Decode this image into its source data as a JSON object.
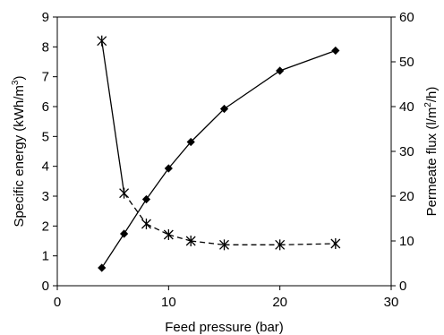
{
  "chart_data": {
    "type": "line",
    "x_axis": {
      "label": "Feed pressure (bar)",
      "range": [
        0,
        30
      ],
      "ticks": [
        0,
        10,
        20,
        30
      ]
    },
    "y_axis_left": {
      "label_parts": [
        "Specific energy (kWh/m",
        "3",
        ")"
      ],
      "range": [
        0,
        9
      ],
      "ticks": [
        0,
        1,
        2,
        3,
        4,
        5,
        6,
        7,
        8,
        9
      ]
    },
    "y_axis_right": {
      "label_parts": [
        "Permeate flux (l/m",
        "2",
        "/h)"
      ],
      "range": [
        0,
        60
      ],
      "ticks": [
        0,
        10,
        20,
        30,
        40,
        50,
        60
      ]
    },
    "grid": false,
    "legend": "none",
    "series": [
      {
        "axis": "right",
        "marker": "diamond",
        "line_style": "solid",
        "color": "#000000",
        "x": [
          4,
          6,
          8,
          10,
          12,
          15,
          20,
          25
        ],
        "y": [
          4,
          11.6,
          19.3,
          26.2,
          32.1,
          39.5,
          48,
          52.5
        ]
      },
      {
        "axis": "left",
        "marker": "asterisk",
        "line_style": "dashed-tail",
        "color": "#000000",
        "x": [
          4,
          6,
          8,
          10,
          12,
          15,
          20,
          25
        ],
        "y": [
          8.2,
          3.1,
          2.07,
          1.71,
          1.5,
          1.37,
          1.37,
          1.41
        ]
      }
    ]
  }
}
